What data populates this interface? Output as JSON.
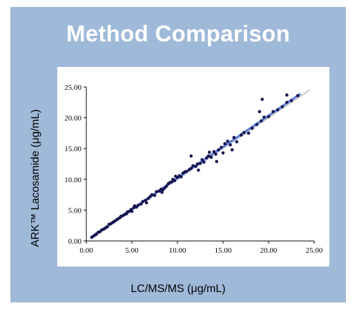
{
  "slide": {
    "title": "Method Comparison"
  },
  "chart_data": {
    "type": "scatter",
    "title": "Method Comparison",
    "xlabel": "LC/MS/MS (μg/mL)",
    "ylabel": "ARK™ Lacosamide (μg/mL)",
    "xlim": [
      0,
      25
    ],
    "ylim": [
      0,
      25
    ],
    "x_ticks": [
      "0.00",
      "5.00",
      "10.00",
      "15.00",
      "20.00",
      "25.00"
    ],
    "y_ticks": [
      "0.00",
      "5.00",
      "10.00",
      "15.00",
      "20.00",
      "25.00"
    ],
    "grid": false,
    "legend": "none",
    "colors": {
      "points": "#141450",
      "fit_line": "#3c64c8",
      "identity_line": "#bbbbbb",
      "background": "#9fb9d8",
      "title": "#ffffff"
    },
    "series": [
      {
        "points": [
          [
            0.6,
            0.6
          ],
          [
            0.8,
            0.8
          ],
          [
            1.0,
            1.0
          ],
          [
            1.1,
            1.1
          ],
          [
            1.3,
            1.4
          ],
          [
            1.5,
            1.5
          ],
          [
            1.7,
            1.8
          ],
          [
            1.9,
            1.9
          ],
          [
            2.1,
            2.1
          ],
          [
            2.3,
            2.3
          ],
          [
            2.5,
            2.7
          ],
          [
            2.7,
            2.8
          ],
          [
            2.9,
            3.0
          ],
          [
            3.0,
            3.1
          ],
          [
            3.2,
            3.3
          ],
          [
            3.4,
            3.5
          ],
          [
            3.5,
            3.6
          ],
          [
            3.7,
            3.8
          ],
          [
            3.8,
            4.0
          ],
          [
            4.0,
            4.1
          ],
          [
            4.2,
            4.3
          ],
          [
            4.4,
            4.4
          ],
          [
            4.5,
            4.7
          ],
          [
            4.7,
            4.8
          ],
          [
            4.9,
            5.1
          ],
          [
            5.0,
            4.8
          ],
          [
            5.2,
            5.4
          ],
          [
            5.5,
            5.5
          ],
          [
            5.7,
            5.8
          ],
          [
            6.0,
            6.0
          ],
          [
            6.2,
            6.4
          ],
          [
            6.5,
            6.6
          ],
          [
            6.8,
            6.9
          ],
          [
            7.0,
            7.2
          ],
          [
            7.2,
            7.5
          ],
          [
            7.5,
            7.4
          ],
          [
            7.7,
            8.0
          ],
          [
            8.0,
            8.1
          ],
          [
            8.2,
            8.4
          ],
          [
            8.4,
            8.3
          ],
          [
            8.6,
            8.6
          ],
          [
            8.8,
            8.9
          ],
          [
            9.0,
            9.3
          ],
          [
            9.2,
            9.5
          ],
          [
            9.4,
            9.6
          ],
          [
            9.5,
            10.0
          ],
          [
            9.7,
            9.8
          ],
          [
            10.0,
            10.3
          ],
          [
            10.2,
            10.6
          ],
          [
            10.4,
            10.4
          ],
          [
            10.6,
            11.0
          ],
          [
            10.8,
            11.2
          ],
          [
            11.0,
            11.3
          ],
          [
            11.3,
            11.6
          ],
          [
            11.5,
            11.8
          ],
          [
            11.7,
            12.2
          ],
          [
            12.0,
            12.1
          ],
          [
            12.2,
            12.5
          ],
          [
            12.5,
            12.6
          ],
          [
            12.7,
            13.2
          ],
          [
            12.9,
            12.8
          ],
          [
            13.2,
            13.5
          ],
          [
            13.4,
            13.8
          ],
          [
            13.7,
            13.6
          ],
          [
            14.0,
            14.5
          ],
          [
            14.2,
            14.1
          ],
          [
            14.5,
            14.8
          ],
          [
            14.8,
            15.2
          ],
          [
            15.0,
            14.3
          ],
          [
            15.2,
            15.8
          ],
          [
            15.5,
            16.2
          ],
          [
            15.8,
            15.6
          ],
          [
            16.2,
            16.8
          ],
          [
            16.5,
            16.1
          ],
          [
            17.0,
            17.2
          ],
          [
            17.3,
            17.6
          ],
          [
            17.8,
            17.5
          ],
          [
            18.2,
            18.3
          ],
          [
            18.7,
            18.9
          ],
          [
            19.2,
            19.5
          ],
          [
            19.5,
            20.1
          ],
          [
            20.0,
            20.2
          ],
          [
            20.5,
            21.0
          ],
          [
            21.0,
            21.3
          ],
          [
            21.5,
            21.8
          ],
          [
            22.0,
            22.5
          ],
          [
            22.5,
            22.8
          ],
          [
            23.2,
            23.6
          ],
          [
            19.0,
            21.0
          ],
          [
            19.3,
            23.0
          ],
          [
            22.0,
            23.7
          ],
          [
            16.0,
            14.8
          ],
          [
            14.3,
            12.9
          ],
          [
            11.5,
            13.8
          ],
          [
            12.3,
            11.5
          ],
          [
            5.3,
            5.7
          ],
          [
            6.6,
            6.2
          ],
          [
            8.3,
            7.9
          ],
          [
            9.8,
            10.5
          ],
          [
            13.5,
            14.4
          ]
        ]
      }
    ],
    "fit_line": {
      "x": [
        0.5,
        23.5
      ],
      "y": [
        0.55,
        23.9
      ]
    },
    "identity_line": {
      "x": [
        0.5,
        24.5
      ],
      "y": [
        0.5,
        24.5
      ]
    }
  }
}
